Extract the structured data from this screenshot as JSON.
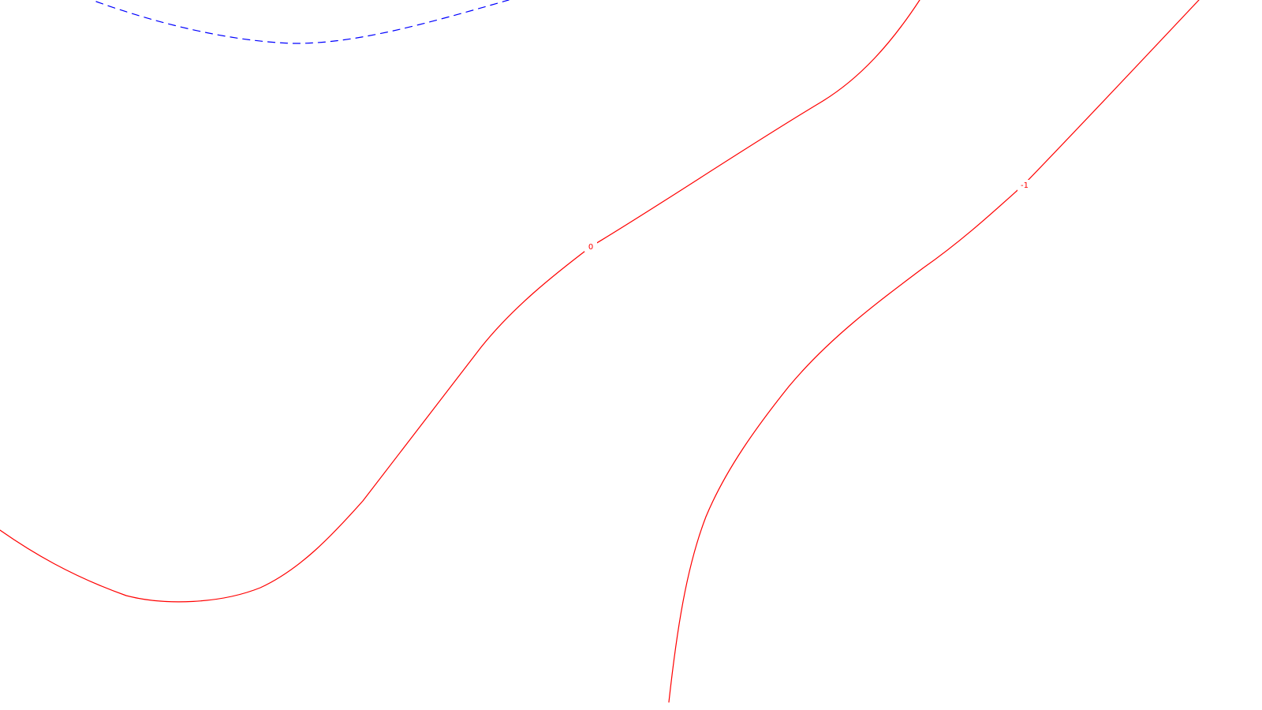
{
  "map": {
    "colors": {
      "background": "#ffffff",
      "contour_solid": "#ff0000",
      "contour_dashed": "#0000ff"
    },
    "contours": [
      {
        "id": "zero",
        "label": "0",
        "color": "#ff0000",
        "style": "solid"
      },
      {
        "id": "minus-one",
        "label": "-1",
        "color": "#ff0000",
        "style": "solid"
      },
      {
        "id": "dashed-top",
        "label": "",
        "color": "#0000ff",
        "style": "dashed"
      }
    ]
  }
}
